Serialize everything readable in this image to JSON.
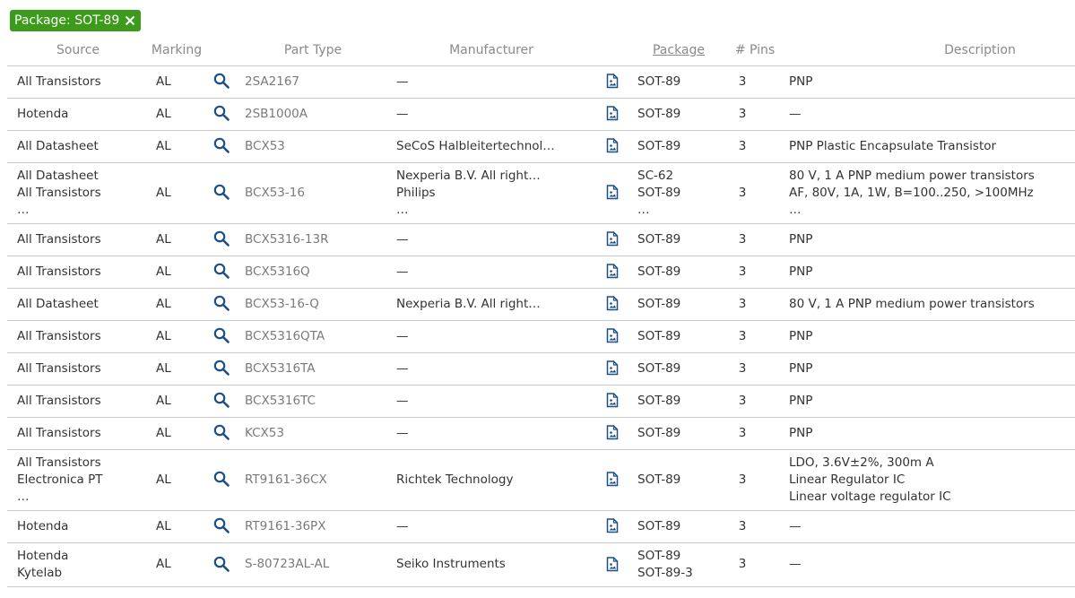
{
  "filter": "Package: SOT-89",
  "table": {
    "headers": [
      "Source",
      "Marking",
      "Part Type",
      "Manufacturer",
      "Package",
      "# Pins",
      "Description"
    ],
    "rows": [
      {
        "source": [
          "All Transistors"
        ],
        "marking": "AL",
        "part": "2SA2167",
        "manufacturer": [
          "—"
        ],
        "package": [
          "SOT-89"
        ],
        "pins": 3,
        "description": [
          "PNP"
        ]
      },
      {
        "source": [
          "Hotenda"
        ],
        "marking": "AL",
        "part": "2SB1000A",
        "manufacturer": [
          "—"
        ],
        "package": [
          "SOT-89"
        ],
        "pins": 3,
        "description": [
          "—"
        ]
      },
      {
        "source": [
          "All Datasheet"
        ],
        "marking": "AL",
        "part": "BCX53",
        "manufacturer": [
          "SeCoS Halbleitertechnol…"
        ],
        "package": [
          "SOT-89"
        ],
        "pins": 3,
        "description": [
          "PNP Plastic Encapsulate Transistor"
        ]
      },
      {
        "source": [
          "All Datasheet",
          "All Transistors",
          "…"
        ],
        "marking": "AL",
        "part": "BCX53-16",
        "manufacturer": [
          "Nexperia B.V. All right…",
          "Philips",
          "…"
        ],
        "package": [
          "SC-62",
          "SOT-89",
          "…"
        ],
        "pins": 3,
        "description": [
          "80 V, 1 A PNP medium power transistors",
          "AF, 80V, 1A, 1W, B=100..250, >100MHz",
          "…"
        ]
      },
      {
        "source": [
          "All Transistors"
        ],
        "marking": "AL",
        "part": "BCX5316-13R",
        "manufacturer": [
          "—"
        ],
        "package": [
          "SOT-89"
        ],
        "pins": 3,
        "description": [
          "PNP"
        ]
      },
      {
        "source": [
          "All Transistors"
        ],
        "marking": "AL",
        "part": "BCX5316Q",
        "manufacturer": [
          "—"
        ],
        "package": [
          "SOT-89"
        ],
        "pins": 3,
        "description": [
          "PNP"
        ]
      },
      {
        "source": [
          "All Datasheet"
        ],
        "marking": "AL",
        "part": "BCX53-16-Q",
        "manufacturer": [
          "Nexperia B.V. All right…"
        ],
        "package": [
          "SOT-89"
        ],
        "pins": 3,
        "description": [
          "80 V, 1 A PNP medium power transistors"
        ]
      },
      {
        "source": [
          "All Transistors"
        ],
        "marking": "AL",
        "part": "BCX5316QTA",
        "manufacturer": [
          "—"
        ],
        "package": [
          "SOT-89"
        ],
        "pins": 3,
        "description": [
          "PNP"
        ]
      },
      {
        "source": [
          "All Transistors"
        ],
        "marking": "AL",
        "part": "BCX5316TA",
        "manufacturer": [
          "—"
        ],
        "package": [
          "SOT-89"
        ],
        "pins": 3,
        "description": [
          "PNP"
        ]
      },
      {
        "source": [
          "All Transistors"
        ],
        "marking": "AL",
        "part": "BCX5316TC",
        "manufacturer": [
          "—"
        ],
        "package": [
          "SOT-89"
        ],
        "pins": 3,
        "description": [
          "PNP"
        ]
      },
      {
        "source": [
          "All Transistors"
        ],
        "marking": "AL",
        "part": "KCX53",
        "manufacturer": [
          "—"
        ],
        "package": [
          "SOT-89"
        ],
        "pins": 3,
        "description": [
          "PNP"
        ]
      },
      {
        "source": [
          "All Transistors",
          "Electronica PT",
          "…"
        ],
        "marking": "AL",
        "part": "RT9161-36CX",
        "manufacturer": [
          "Richtek Technology"
        ],
        "package": [
          "SOT-89"
        ],
        "pins": 3,
        "description": [
          "LDO, 3.6V±2%, 300m A",
          "Linear Regulator IC",
          "Linear voltage regulator IC"
        ]
      },
      {
        "source": [
          "Hotenda"
        ],
        "marking": "AL",
        "part": "RT9161-36PX",
        "manufacturer": [
          "—"
        ],
        "package": [
          "SOT-89"
        ],
        "pins": 3,
        "description": [
          "—"
        ]
      },
      {
        "source": [
          "Hotenda",
          "Kytelab"
        ],
        "marking": "AL",
        "part": "S-80723AL-AL",
        "manufacturer": [
          "Seiko Instruments"
        ],
        "package": [
          "SOT-89",
          "SOT-89-3"
        ],
        "pins": 3,
        "description": [
          "—"
        ]
      }
    ]
  }
}
